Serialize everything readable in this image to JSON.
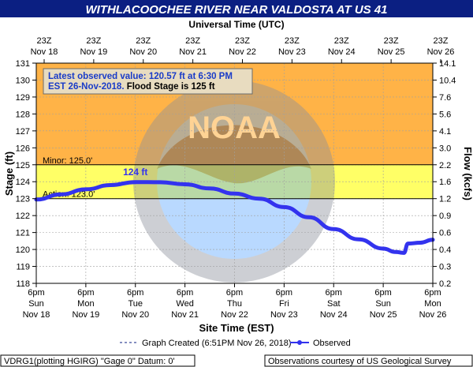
{
  "header": {
    "title": "WITHLACOOCHEE RIVER NEAR VALDOSTA AT US 41",
    "utc_axis_title": "Universal Time (UTC)"
  },
  "info_box": {
    "line1": "Latest observed value: 120.57 ft at 6:30 PM",
    "line2_blue": "EST 26-Nov-2018.",
    "line2_black": " Flood Stage is 125 ft"
  },
  "footer": {
    "legend_created": "Graph Created (6:51PM Nov 26, 2018)",
    "legend_observed": "Observed",
    "station_info": "VDRG1(plotting HGIRG) \"Gage 0\" Datum: 0'",
    "courtesy": "Observations courtesy of US Geological Survey"
  },
  "watermark": {
    "text": "NATIONAL OCEANIC AND ATMOSPHERIC ADMINISTRATION",
    "logo": "NOAA",
    "bottom_text": "U.S. DEPARTMENT OF COMMERCE"
  },
  "colors": {
    "title_bg": "#0b1f82",
    "major_flood": "#cc99ff",
    "moderate": "#ff9999",
    "minor_band": "#ffb347",
    "action_band": "#ffff66",
    "observed": "#3333ee",
    "info_box_bg": "#e8dcc0"
  },
  "chart_data": {
    "type": "line",
    "title": "WITHLACOOCHEE RIVER NEAR VALDOSTA AT US 41",
    "xlabel": "Site Time (EST)",
    "ylabel": "Stage (ft)",
    "y2label": "Flow (kcfs)",
    "ylim": [
      118,
      131
    ],
    "y_ticks": [
      118,
      119,
      120,
      121,
      122,
      123,
      124,
      125,
      126,
      127,
      128,
      129,
      130,
      131
    ],
    "y2_ticks": [
      "0.2",
      "0.3",
      "0.4",
      "0.6",
      "0.9",
      "1.2",
      "1.6",
      "2.2",
      "3.0",
      "4.1",
      "5.6",
      "7.6",
      "10.4",
      "14.1"
    ],
    "x_range_days": [
      "Nov 18",
      "Nov 26"
    ],
    "bottom_ticks": [
      {
        "line1": "6pm",
        "line2": "Sun",
        "line3": "Nov 18"
      },
      {
        "line1": "6pm",
        "line2": "Mon",
        "line3": "Nov 19"
      },
      {
        "line1": "6pm",
        "line2": "Tue",
        "line3": "Nov 20"
      },
      {
        "line1": "6pm",
        "line2": "Wed",
        "line3": "Nov 21"
      },
      {
        "line1": "6pm",
        "line2": "Thu",
        "line3": "Nov 22"
      },
      {
        "line1": "6pm",
        "line2": "Fri",
        "line3": "Nov 23"
      },
      {
        "line1": "6pm",
        "line2": "Sat",
        "line3": "Nov 24"
      },
      {
        "line1": "6pm",
        "line2": "Sun",
        "line3": "Nov 25"
      },
      {
        "line1": "6pm",
        "line2": "Mon",
        "line3": "Nov 26"
      }
    ],
    "top_ticks": [
      {
        "line1": "23Z",
        "line2": "Nov 18"
      },
      {
        "line1": "23Z",
        "line2": "Nov 19"
      },
      {
        "line1": "23Z",
        "line2": "Nov 20"
      },
      {
        "line1": "23Z",
        "line2": "Nov 21"
      },
      {
        "line1": "23Z",
        "line2": "Nov 22"
      },
      {
        "line1": "23Z",
        "line2": "Nov 23"
      },
      {
        "line1": "23Z",
        "line2": "Nov 24"
      },
      {
        "line1": "23Z",
        "line2": "Nov 25"
      },
      {
        "line1": "23Z",
        "line2": "Nov 26"
      }
    ],
    "thresholds": [
      {
        "name": "Minor",
        "value": 125.0,
        "label": "Minor: 125.0'"
      },
      {
        "name": "Action",
        "value": 123.0,
        "label": "Action: 123.0'"
      }
    ],
    "bands": [
      {
        "from": 125,
        "to": 131,
        "color": "#ffb347"
      },
      {
        "from": 123,
        "to": 125,
        "color": "#ffff66"
      }
    ],
    "annotation": {
      "text": "124 ft",
      "x": "Nov 20",
      "y": 124.0
    },
    "series": [
      {
        "name": "Observed",
        "color": "#3333ee",
        "x": [
          "Nov 18",
          "Nov 18 12:00",
          "Nov 19",
          "Nov 19 12:00",
          "Nov 20",
          "Nov 20 12:00",
          "Nov 21",
          "Nov 21 12:00",
          "Nov 22",
          "Nov 22 12:00",
          "Nov 23",
          "Nov 23 12:00",
          "Nov 24",
          "Nov 24 12:00",
          "Nov 25",
          "Nov 25 06:00",
          "Nov 25 10:00",
          "Nov 25 12:00",
          "Nov 25 18:00",
          "Nov 26"
        ],
        "values": [
          122.95,
          123.25,
          123.55,
          123.8,
          123.98,
          123.97,
          123.85,
          123.6,
          123.3,
          123.0,
          122.5,
          121.9,
          121.2,
          120.6,
          120.05,
          119.85,
          119.8,
          120.35,
          120.4,
          120.57
        ]
      }
    ]
  }
}
